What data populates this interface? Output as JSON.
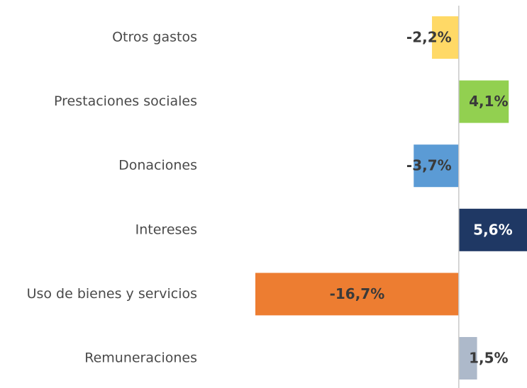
{
  "chart_data": {
    "type": "barh",
    "categories": [
      "Otros gastos",
      "Prestaciones sociales",
      "Donaciones",
      "Intereses",
      "Uso de bienes y servicios",
      "Remuneraciones"
    ],
    "values": [
      -2.2,
      4.1,
      -3.7,
      5.6,
      -16.7,
      1.5
    ],
    "value_labels": [
      "-2,2%",
      "4,1%",
      "-3,7%",
      "5,6%",
      "-16,7%",
      "1,5%"
    ],
    "colors": [
      "#ffd966",
      "#92d050",
      "#5b9bd5",
      "#1f3864",
      "#ed7d31",
      "#adb9ca"
    ],
    "label_colors": [
      "#3a3a3a",
      "#3a3a3a",
      "#3a3a3a",
      "#ffffff",
      "#3a3a3a",
      "#3a3a3a"
    ],
    "xlim": [
      -16.7,
      5.6
    ]
  }
}
